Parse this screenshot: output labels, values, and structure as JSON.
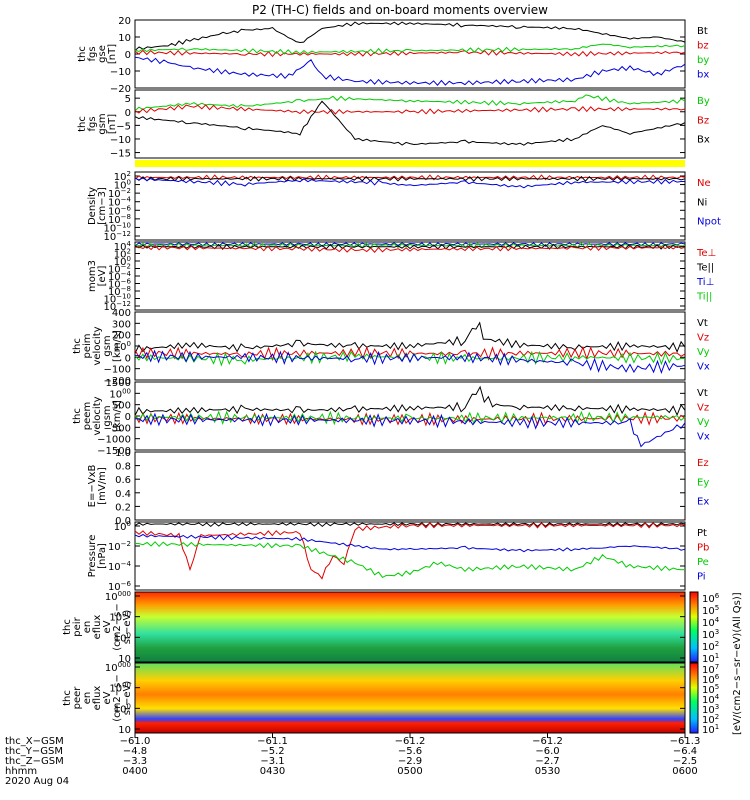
{
  "title": "P2 (TH-C) fields and on-board moments overview",
  "colors": {
    "black": "#000000",
    "red": "#e00000",
    "green": "#00cc00",
    "blue": "#0000dd",
    "yellow": "#ffff00"
  },
  "chart_data": [
    {
      "id": "fgs-gse",
      "type": "line",
      "ylabel": [
        "thc",
        "fgs",
        "gse",
        "[nT]"
      ],
      "ylim": [
        -20,
        20
      ],
      "ytick_labels": [
        "20",
        "10",
        "0",
        "−10",
        "−20"
      ],
      "ytick_values": [
        20,
        10,
        0,
        -10,
        -20
      ],
      "legend": [
        {
          "label": "Bt",
          "color": "black"
        },
        {
          "label": "bz",
          "color": "red"
        },
        {
          "label": "by",
          "color": "green"
        },
        {
          "label": "bx",
          "color": "blue"
        }
      ],
      "series": [
        {
          "color": "black",
          "x": [
            0,
            0.06,
            0.1,
            0.16,
            0.2,
            0.25,
            0.3,
            0.34,
            0.4,
            0.5,
            0.6,
            0.7,
            0.8,
            0.85,
            0.9,
            0.95,
            1
          ],
          "y": [
            3,
            5,
            8,
            12,
            14,
            15,
            6,
            15,
            18,
            18,
            17,
            16,
            15,
            12,
            9,
            10,
            7
          ]
        },
        {
          "color": "red",
          "x": [
            0,
            0.2,
            0.4,
            0.6,
            0.8,
            1
          ],
          "y": [
            1,
            0,
            0,
            1,
            0,
            1
          ]
        },
        {
          "color": "green",
          "x": [
            0,
            0.1,
            0.3,
            0.5,
            0.8,
            0.85,
            0.9,
            1
          ],
          "y": [
            2,
            3,
            1,
            2,
            3,
            6,
            4,
            5
          ]
        },
        {
          "color": "blue",
          "x": [
            0,
            0.06,
            0.1,
            0.2,
            0.28,
            0.32,
            0.34,
            0.4,
            0.5,
            0.6,
            0.7,
            0.8,
            0.85,
            0.9,
            0.95,
            1
          ],
          "y": [
            -2,
            -5,
            -8,
            -12,
            -13,
            -4,
            -13,
            -16,
            -17,
            -17,
            -16,
            -15,
            -10,
            -8,
            -12,
            -6
          ]
        }
      ]
    },
    {
      "id": "fgs-gsm",
      "type": "line",
      "ylabel": [
        "thc",
        "fgs",
        "gsm",
        "[nT]"
      ],
      "ylim": [
        -17,
        8
      ],
      "ytick_labels": [
        "5",
        "0",
        "−5",
        "−10",
        "−15"
      ],
      "ytick_values": [
        5,
        0,
        -5,
        -10,
        -15
      ],
      "legend": [
        {
          "label": "By",
          "color": "green"
        },
        {
          "label": "Bz",
          "color": "red"
        },
        {
          "label": "Bx",
          "color": "black"
        }
      ],
      "series": [
        {
          "color": "green",
          "x": [
            0,
            0.1,
            0.2,
            0.3,
            0.36,
            0.5,
            0.7,
            0.8,
            0.82,
            0.9,
            1
          ],
          "y": [
            1,
            3,
            2,
            4,
            5,
            4,
            3,
            4,
            6,
            3,
            4
          ]
        },
        {
          "color": "red",
          "x": [
            0,
            0.1,
            0.3,
            0.5,
            0.8,
            1
          ],
          "y": [
            0,
            2,
            0,
            0,
            1,
            1
          ]
        },
        {
          "color": "black",
          "x": [
            0,
            0.1,
            0.2,
            0.3,
            0.34,
            0.4,
            0.5,
            0.6,
            0.7,
            0.8,
            0.85,
            0.9,
            1
          ],
          "y": [
            -2,
            -4,
            -6,
            -8,
            4,
            -10,
            -12,
            -11,
            -12,
            -10,
            -5,
            -8,
            -4
          ]
        }
      ]
    },
    {
      "id": "density",
      "type": "line",
      "scale": "log",
      "ylabel": [
        "Density",
        "[cm−3]"
      ],
      "ytick_labels": [
        "102",
        "100",
        "10−2",
        "10−4",
        "10−6",
        "10−8",
        "10−10",
        "10−12"
      ],
      "legend": [
        {
          "label": "Ne",
          "color": "red"
        },
        {
          "label": "Ni",
          "color": "black"
        },
        {
          "label": "Npot",
          "color": "blue"
        }
      ],
      "series": [
        {
          "color": "red",
          "x": [
            0,
            1
          ],
          "y": [
            0.92,
            0.92
          ]
        },
        {
          "color": "black",
          "x": [
            0,
            1
          ],
          "y": [
            0.9,
            0.9
          ]
        },
        {
          "color": "blue",
          "x": [
            0,
            0.2,
            0.3,
            0.45,
            0.5,
            0.6,
            0.7,
            0.8,
            1
          ],
          "y": [
            0.9,
            0.82,
            0.88,
            0.84,
            0.8,
            0.85,
            0.78,
            0.85,
            0.86
          ]
        }
      ]
    },
    {
      "id": "mom-temp",
      "type": "line",
      "scale": "log",
      "ylabel": [
        "mom3",
        "[eV]"
      ],
      "ytick_labels": [
        "104",
        "102",
        "100",
        "10−2",
        "10−4",
        "10−6",
        "10−8",
        "10−10",
        "10−12"
      ],
      "legend": [
        {
          "label": "Te⊥",
          "color": "red"
        },
        {
          "label": "Te||",
          "color": "black"
        },
        {
          "label": "Ti⊥",
          "color": "blue"
        },
        {
          "label": "Ti||",
          "color": "green"
        }
      ],
      "series": [
        {
          "color": "blue",
          "x": [
            0,
            1
          ],
          "y": [
            0.97,
            0.97
          ]
        },
        {
          "color": "green",
          "x": [
            0,
            1
          ],
          "y": [
            0.95,
            0.95
          ]
        },
        {
          "color": "black",
          "x": [
            0,
            1
          ],
          "y": [
            0.93,
            0.93
          ]
        },
        {
          "color": "red",
          "x": [
            0,
            0.3,
            0.4,
            0.6,
            0.8,
            1
          ],
          "y": [
            0.92,
            0.9,
            0.88,
            0.9,
            0.91,
            0.92
          ]
        }
      ]
    },
    {
      "id": "peim-velocity",
      "type": "line",
      "ylabel": [
        "thc",
        "peim",
        "velocity",
        "gsm",
        "[km/s]"
      ],
      "ylim": [
        -200,
        400
      ],
      "ytick_labels": [
        "400",
        "300",
        "200",
        "100",
        "0",
        "−100",
        "−200"
      ],
      "ytick_values": [
        400,
        300,
        200,
        100,
        0,
        -100,
        -200
      ],
      "legend": [
        {
          "label": "Vt",
          "color": "black"
        },
        {
          "label": "Vz",
          "color": "red"
        },
        {
          "label": "Vy",
          "color": "green"
        },
        {
          "label": "Vx",
          "color": "blue"
        }
      ],
      "series": [
        {
          "color": "black",
          "x": [
            0,
            0.1,
            0.2,
            0.3,
            0.4,
            0.5,
            0.6,
            0.62,
            0.64,
            0.7,
            0.8,
            0.9,
            1
          ],
          "y": [
            70,
            110,
            80,
            120,
            100,
            100,
            150,
            300,
            160,
            110,
            90,
            100,
            90
          ]
        },
        {
          "color": "red",
          "x": [
            0,
            0.2,
            0.4,
            0.6,
            0.8,
            1
          ],
          "y": [
            40,
            30,
            40,
            30,
            40,
            30
          ]
        },
        {
          "color": "green",
          "x": [
            0,
            0.2,
            0.4,
            0.6,
            0.8,
            1
          ],
          "y": [
            0,
            -20,
            10,
            -10,
            0,
            -10
          ]
        },
        {
          "color": "blue",
          "x": [
            0,
            0.2,
            0.4,
            0.6,
            0.8,
            0.9,
            1
          ],
          "y": [
            10,
            0,
            -10,
            0,
            -50,
            -100,
            -70
          ]
        }
      ]
    },
    {
      "id": "peem-velocity",
      "type": "line",
      "ylabel": [
        "thc",
        "peem",
        "velocity",
        "gsm",
        "[km/s]"
      ],
      "ylim": [
        -1500,
        1500
      ],
      "ytick_labels": [
        "1500",
        "1000",
        "500",
        "0",
        "−500",
        "−1000",
        "−1500"
      ],
      "ytick_values": [
        1500,
        1000,
        500,
        0,
        -500,
        -1000,
        -1500
      ],
      "legend": [
        {
          "label": "Vt",
          "color": "black"
        },
        {
          "label": "Vz",
          "color": "red"
        },
        {
          "label": "Vy",
          "color": "green"
        },
        {
          "label": "Vx",
          "color": "blue"
        }
      ],
      "series": [
        {
          "color": "black",
          "x": [
            0,
            0.1,
            0.2,
            0.3,
            0.4,
            0.5,
            0.6,
            0.62,
            0.65,
            0.7,
            0.8,
            0.9,
            1
          ],
          "y": [
            200,
            250,
            300,
            250,
            300,
            350,
            400,
            1200,
            500,
            400,
            350,
            300,
            250
          ]
        },
        {
          "color": "red",
          "x": [
            0,
            0.5,
            1
          ],
          "y": [
            -100,
            -150,
            -100
          ]
        },
        {
          "color": "green",
          "x": [
            0,
            0.5,
            1
          ],
          "y": [
            -50,
            -100,
            -50
          ]
        },
        {
          "color": "blue",
          "x": [
            0,
            0.5,
            0.7,
            0.9,
            0.92,
            1
          ],
          "y": [
            -150,
            -200,
            -300,
            -300,
            -1300,
            -300
          ]
        }
      ]
    },
    {
      "id": "e-field",
      "type": "line",
      "ylabel": [
        "E=−VxB",
        "[mV/m]"
      ],
      "ylim": [
        0,
        1
      ],
      "ytick_labels": [
        "1.0",
        "0.8",
        "0.6",
        "0.4",
        "0.2",
        "0.0"
      ],
      "ytick_values": [
        1,
        0.8,
        0.6,
        0.4,
        0.2,
        0
      ],
      "legend": [
        {
          "label": "Ez",
          "color": "red"
        },
        {
          "label": "Ey",
          "color": "green"
        },
        {
          "label": "Ex",
          "color": "blue"
        }
      ],
      "series": []
    },
    {
      "id": "pressure",
      "type": "line",
      "scale": "log",
      "ylabel": [
        "Pressure",
        "[nPa]"
      ],
      "ytick_labels": [
        "100",
        "10−2",
        "10−4",
        "10−6"
      ],
      "legend": [
        {
          "label": "Pt",
          "color": "black"
        },
        {
          "label": "Pb",
          "color": "red"
        },
        {
          "label": "Pe",
          "color": "green"
        },
        {
          "label": "Pi",
          "color": "blue"
        }
      ],
      "series": [
        {
          "color": "black",
          "x": [
            0,
            1
          ],
          "y": [
            0.97,
            0.97
          ]
        },
        {
          "color": "red",
          "x": [
            0,
            0.08,
            0.1,
            0.12,
            0.3,
            0.32,
            0.34,
            0.36,
            0.38,
            0.4,
            0.5,
            1
          ],
          "y": [
            0.85,
            0.8,
            0.3,
            0.8,
            0.85,
            0.3,
            0.2,
            0.5,
            0.4,
            0.9,
            0.95,
            0.95
          ]
        },
        {
          "color": "blue",
          "x": [
            0,
            0.3,
            0.4,
            0.45,
            0.5,
            0.6,
            0.7,
            0.8,
            0.85,
            0.9,
            1
          ],
          "y": [
            0.8,
            0.75,
            0.65,
            0.6,
            0.6,
            0.62,
            0.58,
            0.6,
            0.62,
            0.65,
            0.6
          ]
        },
        {
          "color": "green",
          "x": [
            0,
            0.3,
            0.4,
            0.45,
            0.5,
            0.55,
            0.6,
            0.7,
            0.8,
            0.85,
            0.9,
            1
          ],
          "y": [
            0.68,
            0.65,
            0.4,
            0.2,
            0.25,
            0.4,
            0.3,
            0.35,
            0.3,
            0.5,
            0.35,
            0.3
          ]
        }
      ]
    },
    {
      "id": "peir-spectrogram",
      "type": "heatmap",
      "ylabel": [
        "thc",
        "peir",
        "en",
        "eflux",
        "eV",
        "(cm2−s−",
        "sr−eV)"
      ],
      "ytick_labels": [
        "10000",
        "1000",
        "100",
        "10"
      ],
      "colorbar_labels": [
        "106",
        "105",
        "104",
        "103",
        "102",
        "101"
      ]
    },
    {
      "id": "peer-spectrogram",
      "type": "heatmap",
      "ylabel": [
        "thc",
        "peer",
        "en",
        "eflux",
        "eV",
        "(cm2−s−",
        "sr−eV)"
      ],
      "ytick_labels": [
        "10000",
        "1000",
        "100",
        "10"
      ],
      "colorbar_labels": [
        "107",
        "106",
        "105",
        "104",
        "103",
        "102",
        "101"
      ]
    }
  ],
  "colorbar_title": "[eV/(cm2−s−sr−eV)(All Qs)]",
  "x_axis": {
    "row_labels": [
      "thc_X−GSM",
      "thc_Y−GSM",
      "thc_Z−GSM",
      "hhmm",
      "2020 Aug 04"
    ],
    "columns": [
      {
        "values": [
          "−61.0",
          "−4.8",
          "−3.3",
          "0400"
        ]
      },
      {
        "values": [
          "−61.1",
          "−5.2",
          "−3.1",
          "0430"
        ]
      },
      {
        "values": [
          "−61.2",
          "−5.6",
          "−2.9",
          "0500"
        ]
      },
      {
        "values": [
          "−61.2",
          "−6.0",
          "−2.7",
          "0530"
        ]
      },
      {
        "values": [
          "−61.3",
          "−6.4",
          "−2.5",
          "0600"
        ]
      }
    ]
  }
}
